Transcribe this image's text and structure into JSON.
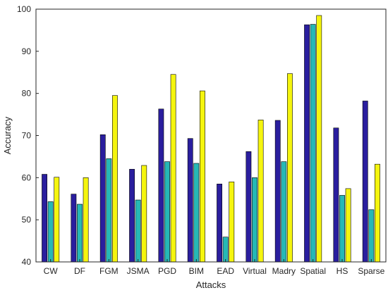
{
  "chart_data": {
    "type": "bar",
    "title": "",
    "xlabel": "Attacks",
    "ylabel": "Accuracy",
    "ylim": [
      40,
      100
    ],
    "yticks": [
      40,
      50,
      60,
      70,
      80,
      90,
      100
    ],
    "grid": false,
    "legend": "none",
    "categories": [
      "CW",
      "DF",
      "FGM",
      "JSMA",
      "PGD",
      "BIM",
      "EAD",
      "Virtual",
      "Madry",
      "Spatial",
      "HS",
      "Sparse"
    ],
    "series": [
      {
        "color": "#2a1e9e",
        "values": [
          60.8,
          56.1,
          70.2,
          62.0,
          76.3,
          69.3,
          58.5,
          66.2,
          73.6,
          96.3,
          71.8,
          78.2
        ]
      },
      {
        "color": "#26b8b6",
        "values": [
          54.3,
          53.7,
          64.5,
          54.7,
          63.8,
          63.4,
          45.9,
          60.0,
          63.8,
          96.4,
          55.8,
          52.4
        ]
      },
      {
        "color": "#f5f50e",
        "values": [
          60.1,
          60.0,
          79.5,
          62.9,
          84.5,
          80.6,
          59.0,
          73.7,
          84.7,
          98.5,
          57.4,
          63.2
        ]
      }
    ]
  }
}
